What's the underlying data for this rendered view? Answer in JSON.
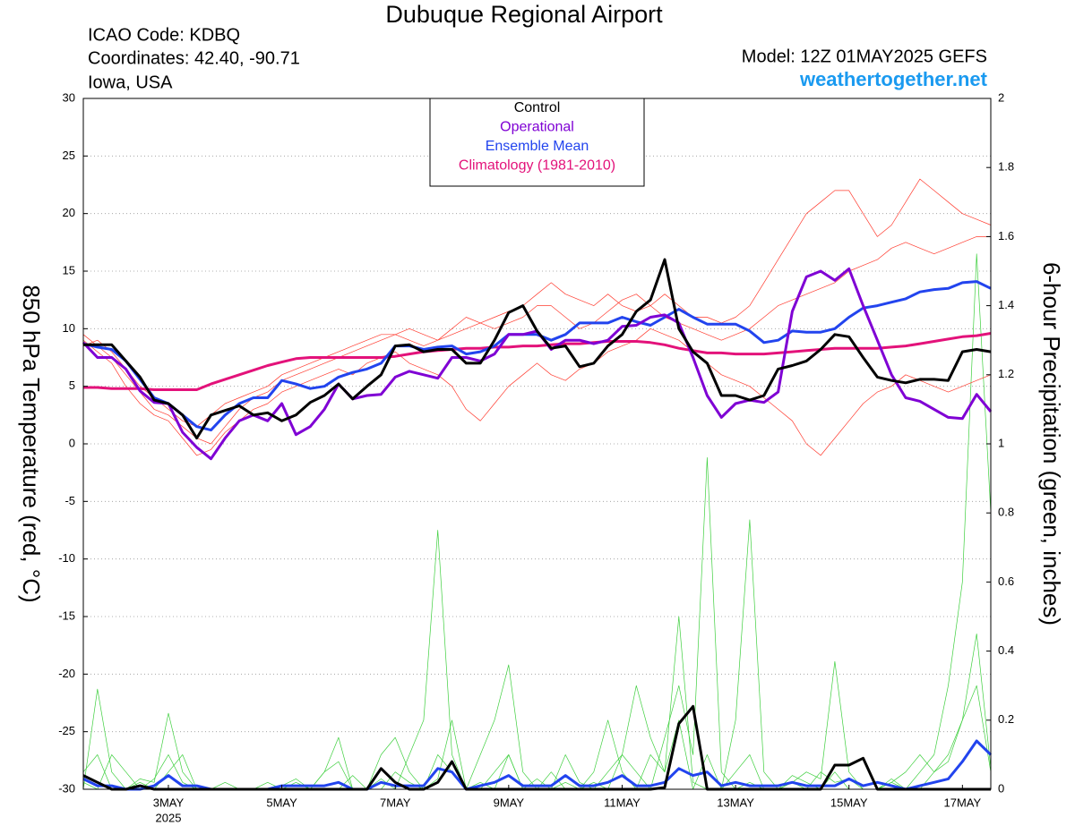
{
  "chart_data": {
    "type": "line",
    "title": "Dubuque Regional Airport",
    "info_lines": [
      "ICAO Code: KDBQ",
      "Coordinates: 42.40, -90.71",
      "Iowa, USA"
    ],
    "model": "Model: 12Z 01MAY2025 GEFS",
    "source": "weathertogether.net",
    "ylabel": "850 hPa Temperature (red, °C)",
    "y2label": "6-hour Precipitation (green, inches)",
    "x_sub_label": "2025",
    "categories": [
      null,
      null,
      null,
      null,
      null,
      null,
      "3MAY",
      null,
      null,
      null,
      null,
      null,
      null,
      null,
      "5MAY",
      null,
      null,
      null,
      null,
      null,
      null,
      null,
      "7MAY",
      null,
      null,
      null,
      null,
      null,
      null,
      null,
      "9MAY",
      null,
      null,
      null,
      null,
      null,
      null,
      null,
      "11MAY",
      null,
      null,
      null,
      null,
      null,
      null,
      null,
      "13MAY",
      null,
      null,
      null,
      null,
      null,
      null,
      null,
      "15MAY",
      null,
      null,
      null,
      null,
      null,
      null,
      null,
      "17MAY",
      null,
      null
    ],
    "ylim": [
      -30,
      30
    ],
    "yticks": [
      -30,
      -25,
      -20,
      -15,
      -10,
      -5,
      0,
      5,
      10,
      15,
      20,
      25,
      30
    ],
    "y2lim": [
      0,
      2
    ],
    "y2ticks": [
      0,
      0.2,
      0.4,
      0.6,
      0.8,
      1,
      1.2,
      1.4,
      1.6,
      1.8,
      2
    ],
    "grid": true,
    "legend": "top center",
    "series": [
      {
        "name": "Control",
        "color": "#000000",
        "line_width": 3,
        "values": [
          8.6,
          8.6,
          8.6,
          7.2,
          5.8,
          3.8,
          3.5,
          2.5,
          0.5,
          2.5,
          2.9,
          3.3,
          2.5,
          2.7,
          2.0,
          2.5,
          3.6,
          4.2,
          5.2,
          3.9,
          5.0,
          6.0,
          8.5,
          8.6,
          8.0,
          8.2,
          8.2,
          7.0,
          7.0,
          9.0,
          11.4,
          12.0,
          9.8,
          8.3,
          8.5,
          6.7,
          7.0,
          8.5,
          9.5,
          11.5,
          12.5,
          16.0,
          10.0,
          8.0,
          7.0,
          4.2,
          4.2,
          3.8,
          4.2,
          6.5,
          6.8,
          7.2,
          8.2,
          9.5,
          9.3,
          7.5,
          5.8,
          5.5,
          5.3,
          5.6,
          5.6,
          5.5,
          8.0,
          8.2,
          8.0
        ]
      },
      {
        "name": "Operational",
        "color": "#7f00d4",
        "line_width": 3,
        "values": [
          8.8,
          7.5,
          7.5,
          6.5,
          4.6,
          3.6,
          3.5,
          1.0,
          -0.3,
          -1.3,
          0.5,
          2.0,
          2.5,
          2.0,
          3.5,
          0.8,
          1.5,
          3.0,
          5.2,
          3.9,
          4.2,
          4.3,
          5.8,
          6.3,
          6.0,
          5.7,
          7.5,
          7.5,
          7.2,
          7.8,
          9.5,
          9.5,
          9.8,
          8.2,
          9.0,
          9.0,
          8.7,
          9.0,
          10.2,
          10.3,
          11.0,
          11.2,
          10.5,
          7.5,
          4.2,
          2.3,
          3.5,
          3.8,
          3.6,
          4.5,
          11.5,
          14.5,
          15.0,
          14.2,
          15.2,
          12.0,
          9.0,
          6.0,
          4.0,
          3.7,
          3.0,
          2.3,
          2.2,
          4.3,
          2.8
        ]
      },
      {
        "name": "Ensemble Mean",
        "color": "#2244ee",
        "line_width": 3,
        "values": [
          8.7,
          8.4,
          8.2,
          7.2,
          5.6,
          4.0,
          3.5,
          2.5,
          1.5,
          1.2,
          2.5,
          3.5,
          4.0,
          4.0,
          5.5,
          5.2,
          4.8,
          5.0,
          5.8,
          6.2,
          6.5,
          7.0,
          8.5,
          8.5,
          8.2,
          8.4,
          8.5,
          7.8,
          8.0,
          8.5,
          9.5,
          9.5,
          9.5,
          9.0,
          9.5,
          10.5,
          10.5,
          10.5,
          11.0,
          10.6,
          10.3,
          11.0,
          11.7,
          11.0,
          10.4,
          10.4,
          10.4,
          9.8,
          8.8,
          9.0,
          9.8,
          9.7,
          9.7,
          10.0,
          11.0,
          11.8,
          12.0,
          12.3,
          12.6,
          13.2,
          13.4,
          13.5,
          14.0,
          14.1,
          13.5
        ]
      },
      {
        "name": "Climatology (1981-2010)",
        "color": "#e3127a",
        "line_width": 3,
        "values": [
          4.9,
          4.9,
          4.8,
          4.8,
          4.8,
          4.7,
          4.7,
          4.7,
          4.7,
          5.2,
          5.6,
          6.0,
          6.4,
          6.8,
          7.1,
          7.4,
          7.5,
          7.5,
          7.5,
          7.5,
          7.5,
          7.5,
          7.6,
          7.8,
          8.0,
          8.1,
          8.2,
          8.3,
          8.3,
          8.4,
          8.4,
          8.5,
          8.5,
          8.6,
          8.7,
          8.7,
          8.8,
          8.9,
          8.9,
          8.9,
          8.8,
          8.6,
          8.3,
          8.1,
          7.9,
          7.9,
          7.8,
          7.8,
          7.8,
          7.9,
          8.0,
          8.1,
          8.2,
          8.3,
          8.3,
          8.3,
          8.3,
          8.4,
          8.5,
          8.7,
          8.9,
          9.1,
          9.3,
          9.4,
          9.6
        ]
      },
      {
        "color": "#000000",
        "line_width": 3,
        "axis": "y2",
        "values": [
          0.04,
          0.02,
          0,
          0,
          0.01,
          0,
          0,
          0,
          0,
          0,
          0,
          0,
          0,
          0,
          0,
          0,
          0,
          0,
          0,
          0,
          0,
          0.06,
          0.02,
          0,
          0,
          0.02,
          0.08,
          0,
          0,
          0,
          0,
          0,
          0,
          0,
          0,
          0,
          0,
          0,
          0,
          0,
          0,
          0.005,
          0.19,
          0.24,
          0,
          0,
          0,
          0,
          0,
          0,
          0,
          0,
          0,
          0.07,
          0.07,
          0.09,
          0,
          0,
          0,
          0,
          0,
          0,
          0,
          0,
          0
        ]
      },
      {
        "color": "#2244ee",
        "line_width": 3,
        "axis": "y2",
        "values": [
          0.03,
          0.01,
          0.01,
          0,
          0,
          0.01,
          0.04,
          0.01,
          0.01,
          0,
          0,
          0,
          0,
          0,
          0.01,
          0.01,
          0.01,
          0.01,
          0.02,
          0,
          0,
          0.02,
          0.01,
          0.01,
          0.01,
          0.06,
          0.05,
          0,
          0.01,
          0.02,
          0.04,
          0.01,
          0.01,
          0.01,
          0.04,
          0.01,
          0.01,
          0.02,
          0.04,
          0.01,
          0.01,
          0.02,
          0.06,
          0.04,
          0.05,
          0.01,
          0.02,
          0.01,
          0.01,
          0.01,
          0.02,
          0.01,
          0.01,
          0.01,
          0.03,
          0.01,
          0.02,
          0.01,
          0,
          0.01,
          0.02,
          0.03,
          0.08,
          0.14,
          0.1
        ]
      },
      {
        "color": "#ff3b2f",
        "line_width": 0.7,
        "values": [
          9.5,
          8.5,
          7.5,
          6,
          4.5,
          3,
          2.5,
          1.5,
          0.5,
          0,
          1.5,
          3,
          4,
          4.5,
          5.5,
          6,
          6.5,
          7,
          7.5,
          8,
          8.5,
          9,
          9.5,
          10,
          9.5,
          9,
          9.5,
          10,
          10.5,
          11,
          11.5,
          12,
          13,
          14,
          13,
          12.5,
          12,
          13,
          12,
          11.5,
          12,
          13,
          12,
          11,
          11,
          10.5,
          11,
          12,
          14,
          16,
          18,
          20,
          21,
          22,
          22,
          20,
          18,
          19,
          21,
          23,
          22,
          21,
          20,
          19.5,
          19
        ]
      },
      {
        "color": "#ff3b2f",
        "line_width": 0.7,
        "values": [
          9,
          8,
          7,
          5,
          3.5,
          2.5,
          2,
          0.5,
          -1,
          -0.5,
          1,
          2,
          3,
          3.5,
          4.5,
          5,
          5.5,
          6,
          6.5,
          6,
          7,
          7.5,
          8,
          7,
          6.5,
          6,
          5,
          3,
          2,
          3.5,
          5,
          6,
          7,
          6,
          5.5,
          6.5,
          7,
          8,
          8.5,
          9,
          10,
          9.5,
          9,
          8,
          7,
          6,
          5.5,
          5,
          4,
          3,
          2,
          0,
          -1,
          0.5,
          2,
          3.5,
          4.5,
          5,
          6,
          5.5,
          5,
          4.5,
          5,
          5.5,
          6
        ]
      },
      {
        "color": "#ff3b2f",
        "line_width": 0.7,
        "values": [
          8.5,
          9,
          8,
          6.5,
          5,
          4,
          3,
          2,
          1.5,
          2.5,
          3.5,
          4,
          4.5,
          5,
          6,
          6.5,
          7,
          7.5,
          8,
          8.5,
          9,
          9.5,
          9.5,
          9,
          8.5,
          9,
          10,
          11,
          10.5,
          10,
          10.5,
          11,
          12,
          12,
          11,
          10,
          10.5,
          11.5,
          12.5,
          13,
          12,
          11,
          10.5,
          10,
          9.5,
          9,
          9.5,
          10,
          11,
          12,
          12.5,
          13,
          13.5,
          14,
          15,
          15.5,
          16,
          17,
          17.5,
          17,
          16.5,
          17,
          17.5,
          18,
          18
        ]
      },
      {
        "color": "#3ecf3e",
        "line_width": 0.7,
        "axis": "y2",
        "values": [
          0,
          0.29,
          0.05,
          0,
          0.02,
          0,
          0.05,
          0.1,
          0,
          0,
          0,
          0,
          0,
          0,
          0,
          0.02,
          0,
          0.05,
          0.08,
          0,
          0,
          0.03,
          0,
          0.1,
          0.2,
          0.75,
          0.1,
          0,
          0,
          0.05,
          0.1,
          0,
          0,
          0.05,
          0,
          0,
          0.02,
          0,
          0.1,
          0.05,
          0,
          0.15,
          0.3,
          0.1,
          0.96,
          0.05,
          0,
          0.02,
          0,
          0,
          0.04,
          0.02,
          0,
          0.05,
          0,
          0,
          0,
          0.03,
          0,
          0,
          0.05,
          0.1,
          0.2,
          0.3,
          0.05
        ]
      },
      {
        "color": "#3ecf3e",
        "line_width": 0.7,
        "axis": "y2",
        "values": [
          0.02,
          0,
          0.1,
          0.05,
          0,
          0.03,
          0.1,
          0.02,
          0,
          0,
          0,
          0,
          0,
          0.02,
          0,
          0,
          0,
          0.05,
          0.15,
          0,
          0,
          0,
          0.05,
          0.02,
          0,
          0.1,
          0.05,
          0,
          0.1,
          0.2,
          0.36,
          0.05,
          0,
          0,
          0.1,
          0.02,
          0,
          0.05,
          0.1,
          0.3,
          0.15,
          0.05,
          0.5,
          0.02,
          0,
          0,
          0.05,
          0.1,
          0,
          0,
          0.02,
          0,
          0.05,
          0.02,
          0.03,
          0,
          0,
          0.02,
          0,
          0.05,
          0.1,
          0.3,
          0.6,
          1.55,
          0.8
        ]
      },
      {
        "color": "#3ecf3e",
        "line_width": 0.7,
        "axis": "y2",
        "values": [
          0.05,
          0.1,
          0,
          0,
          0.03,
          0.02,
          0.22,
          0.05,
          0,
          0,
          0.02,
          0,
          0,
          0,
          0.01,
          0.03,
          0,
          0,
          0,
          0.04,
          0,
          0.1,
          0.15,
          0.05,
          0,
          0.03,
          0.2,
          0,
          0.02,
          0,
          0.1,
          0,
          0.03,
          0,
          0.02,
          0,
          0.05,
          0.2,
          0.05,
          0,
          0.1,
          0.05,
          0.2,
          0,
          0.1,
          0,
          0.2,
          0.78,
          0.05,
          0,
          0.02,
          0.05,
          0.03,
          0.37,
          0.05,
          0,
          0,
          0.02,
          0.05,
          0.1,
          0.05,
          0.08,
          0.2,
          0.45,
          0.06
        ]
      }
    ]
  }
}
